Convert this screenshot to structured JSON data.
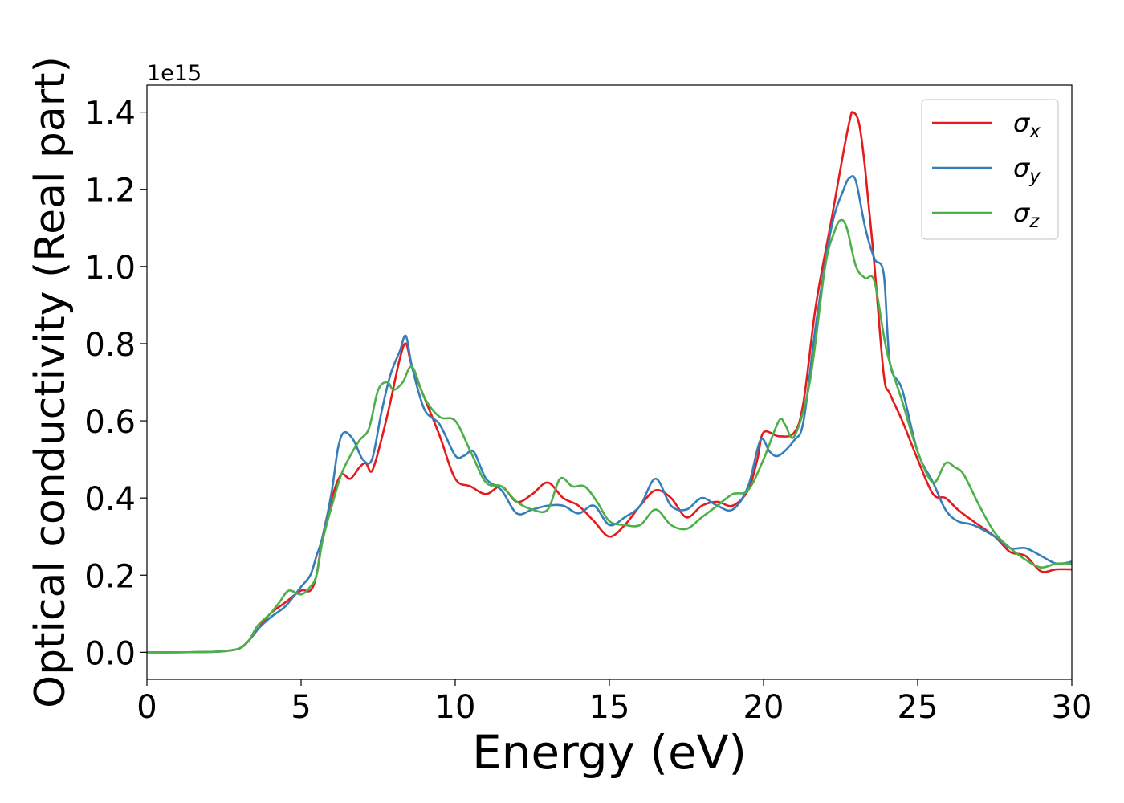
{
  "chart_data": {
    "type": "line",
    "xlabel": "Energy (eV)",
    "ylabel": "Optical conductivity (Real part)",
    "offset_text": "1e15",
    "xlim": [
      0,
      30
    ],
    "ylim": [
      -0.07,
      1.47
    ],
    "xticks": [
      0,
      5,
      10,
      15,
      20,
      25,
      30
    ],
    "xtick_labels": [
      "0",
      "5",
      "10",
      "15",
      "20",
      "25",
      "30"
    ],
    "yticks": [
      0.0,
      0.2,
      0.4,
      0.6,
      0.8,
      1.0,
      1.2,
      1.4
    ],
    "ytick_labels": [
      "0.0",
      "0.2",
      "0.4",
      "0.6",
      "0.8",
      "1.0",
      "1.2",
      "1.4"
    ],
    "grid": false,
    "legend_position": "top-right",
    "series": [
      {
        "name": "σ_x",
        "legend_base": "σ",
        "legend_sub": "x",
        "color": "#e41a1c",
        "x": [
          0,
          1,
          2,
          2.5,
          3.0,
          3.3,
          3.6,
          4.0,
          4.5,
          5.0,
          5.3,
          5.5,
          5.7,
          6.0,
          6.3,
          6.6,
          6.9,
          7.1,
          7.3,
          7.6,
          7.9,
          8.2,
          8.4,
          8.6,
          9.0,
          9.5,
          10.0,
          10.5,
          11.0,
          11.5,
          12.0,
          12.5,
          13.0,
          13.5,
          14.0,
          14.5,
          15.0,
          15.5,
          16.0,
          16.5,
          17.0,
          17.5,
          18.0,
          18.5,
          19.0,
          19.5,
          19.8,
          20.0,
          20.5,
          21.0,
          21.3,
          21.7,
          22.2,
          22.6,
          22.8,
          22.9,
          23.1,
          23.3,
          23.6,
          23.9,
          24.1,
          24.5,
          25.0,
          25.5,
          25.9,
          26.3,
          26.8,
          27.5,
          28.0,
          28.5,
          29.0,
          29.5,
          30.0
        ],
        "y": [
          0.0,
          0.0,
          0.001,
          0.003,
          0.01,
          0.03,
          0.06,
          0.1,
          0.13,
          0.16,
          0.16,
          0.2,
          0.3,
          0.4,
          0.46,
          0.45,
          0.48,
          0.49,
          0.47,
          0.55,
          0.65,
          0.76,
          0.8,
          0.74,
          0.66,
          0.56,
          0.45,
          0.43,
          0.41,
          0.43,
          0.39,
          0.41,
          0.44,
          0.4,
          0.38,
          0.34,
          0.3,
          0.33,
          0.38,
          0.42,
          0.4,
          0.35,
          0.38,
          0.39,
          0.38,
          0.42,
          0.5,
          0.57,
          0.56,
          0.57,
          0.65,
          0.9,
          1.12,
          1.3,
          1.38,
          1.4,
          1.37,
          1.25,
          1.0,
          0.72,
          0.67,
          0.6,
          0.5,
          0.41,
          0.4,
          0.37,
          0.34,
          0.3,
          0.26,
          0.25,
          0.21,
          0.215,
          0.215
        ]
      },
      {
        "name": "σ_y",
        "legend_base": "σ",
        "legend_sub": "y",
        "color": "#377eb8",
        "x": [
          0,
          1,
          2,
          2.5,
          3.0,
          3.3,
          3.6,
          4.0,
          4.5,
          5.0,
          5.3,
          5.5,
          5.7,
          6.0,
          6.2,
          6.4,
          6.7,
          7.0,
          7.3,
          7.6,
          7.9,
          8.2,
          8.4,
          8.6,
          9.0,
          9.5,
          10.0,
          10.3,
          10.6,
          11.0,
          11.5,
          12.0,
          12.5,
          13.0,
          13.5,
          14.0,
          14.5,
          15.0,
          15.5,
          16.0,
          16.5,
          17.0,
          17.5,
          18.0,
          18.5,
          19.0,
          19.5,
          19.9,
          20.2,
          20.5,
          21.0,
          21.3,
          21.7,
          22.2,
          22.6,
          22.8,
          23.0,
          23.3,
          23.6,
          23.9,
          24.1,
          24.5,
          25.0,
          25.5,
          25.9,
          26.3,
          26.8,
          27.5,
          28.0,
          28.5,
          29.0,
          29.5,
          30.0
        ],
        "y": [
          0.0,
          0.0,
          0.001,
          0.003,
          0.01,
          0.03,
          0.06,
          0.09,
          0.12,
          0.17,
          0.2,
          0.25,
          0.3,
          0.42,
          0.53,
          0.57,
          0.55,
          0.5,
          0.5,
          0.62,
          0.72,
          0.78,
          0.82,
          0.74,
          0.63,
          0.59,
          0.51,
          0.51,
          0.52,
          0.45,
          0.42,
          0.36,
          0.37,
          0.38,
          0.38,
          0.36,
          0.38,
          0.33,
          0.35,
          0.38,
          0.45,
          0.38,
          0.37,
          0.4,
          0.38,
          0.37,
          0.43,
          0.55,
          0.52,
          0.51,
          0.55,
          0.6,
          0.85,
          1.1,
          1.2,
          1.23,
          1.22,
          1.1,
          1.02,
          0.98,
          0.75,
          0.68,
          0.52,
          0.44,
          0.37,
          0.34,
          0.33,
          0.3,
          0.27,
          0.27,
          0.25,
          0.23,
          0.235
        ]
      },
      {
        "name": "σ_z",
        "legend_base": "σ",
        "legend_sub": "z",
        "color": "#4daf4a",
        "x": [
          0,
          1,
          2,
          2.5,
          3.0,
          3.3,
          3.6,
          4.0,
          4.3,
          4.6,
          5.0,
          5.3,
          5.5,
          5.7,
          6.0,
          6.3,
          6.6,
          6.9,
          7.2,
          7.5,
          7.8,
          8.0,
          8.3,
          8.6,
          9.0,
          9.5,
          10.0,
          10.5,
          11.0,
          11.5,
          12.0,
          12.5,
          13.0,
          13.4,
          13.8,
          14.2,
          14.6,
          15.0,
          15.5,
          16.0,
          16.5,
          17.0,
          17.5,
          18.0,
          18.5,
          19.0,
          19.5,
          20.0,
          20.5,
          20.7,
          21.0,
          21.5,
          22.0,
          22.3,
          22.5,
          22.7,
          23.0,
          23.3,
          23.6,
          24.0,
          24.5,
          25.0,
          25.5,
          25.9,
          26.2,
          26.5,
          27.0,
          27.5,
          28.0,
          28.5,
          29.0,
          29.5,
          30.0
        ],
        "y": [
          0.0,
          0.0,
          0.001,
          0.003,
          0.01,
          0.03,
          0.07,
          0.1,
          0.13,
          0.16,
          0.15,
          0.17,
          0.2,
          0.29,
          0.38,
          0.46,
          0.51,
          0.55,
          0.58,
          0.68,
          0.7,
          0.68,
          0.7,
          0.74,
          0.66,
          0.61,
          0.6,
          0.52,
          0.44,
          0.43,
          0.39,
          0.37,
          0.37,
          0.45,
          0.43,
          0.43,
          0.39,
          0.34,
          0.33,
          0.33,
          0.37,
          0.33,
          0.32,
          0.35,
          0.38,
          0.41,
          0.42,
          0.5,
          0.6,
          0.59,
          0.56,
          0.7,
          1.0,
          1.09,
          1.12,
          1.1,
          1.0,
          0.97,
          0.96,
          0.78,
          0.65,
          0.52,
          0.44,
          0.49,
          0.48,
          0.46,
          0.38,
          0.31,
          0.27,
          0.24,
          0.22,
          0.23,
          0.23
        ]
      }
    ]
  }
}
